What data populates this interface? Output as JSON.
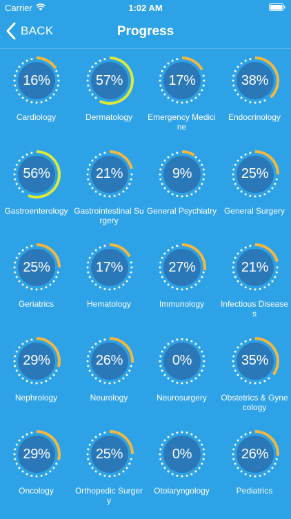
{
  "status": {
    "carrier": "Carrier",
    "time": "1:02 AM"
  },
  "nav": {
    "back_label": "BACK",
    "title": "Progress"
  },
  "colors": {
    "background": "#2ea2e6",
    "inner_circle": "#2b78b8",
    "dots": "#ffffff",
    "ring_low": "#f6b73c",
    "ring_high": "#dce83a"
  },
  "topics": [
    {
      "label": "Cardiology",
      "pct_text": "16%",
      "progress": 0.16
    },
    {
      "label": "Dermatology",
      "pct_text": "57%",
      "progress": 0.57
    },
    {
      "label": "Emergency Medicine",
      "pct_text": "17%",
      "progress": 0.17
    },
    {
      "label": "Endocrinology",
      "pct_text": "38%",
      "progress": 0.38
    },
    {
      "label": "Gastroenterology",
      "pct_text": "56%",
      "progress": 0.56
    },
    {
      "label": "Gastrointestinal Surgery",
      "pct_text": "21%",
      "progress": 0.21
    },
    {
      "label": "General Psychiatry",
      "pct_text": "9%",
      "progress": 0.09
    },
    {
      "label": "General Surgery",
      "pct_text": "25%",
      "progress": 0.25
    },
    {
      "label": "Geriatrics",
      "pct_text": "25%",
      "progress": 0.25
    },
    {
      "label": "Hematology",
      "pct_text": "17%",
      "progress": 0.17
    },
    {
      "label": "Immunology",
      "pct_text": "27%",
      "progress": 0.27
    },
    {
      "label": "Infectious Diseases",
      "pct_text": "21%",
      "progress": 0.21
    },
    {
      "label": "Nephrology",
      "pct_text": "29%",
      "progress": 0.29
    },
    {
      "label": "Neurology",
      "pct_text": "26%",
      "progress": 0.26
    },
    {
      "label": "Neurosurgery",
      "pct_text": "0%",
      "progress": 0
    },
    {
      "label": "Obstetrics & Gynecology",
      "pct_text": "35%",
      "progress": 0.35
    },
    {
      "label": "Oncology",
      "pct_text": "29%",
      "progress": 0.29
    },
    {
      "label": "Orthopedic Surgery",
      "pct_text": "25%",
      "progress": 0.25
    },
    {
      "label": "Otolaryngology",
      "pct_text": "0%",
      "progress": 0
    },
    {
      "label": "Pediatrics",
      "pct_text": "26%",
      "progress": 0.26
    }
  ]
}
